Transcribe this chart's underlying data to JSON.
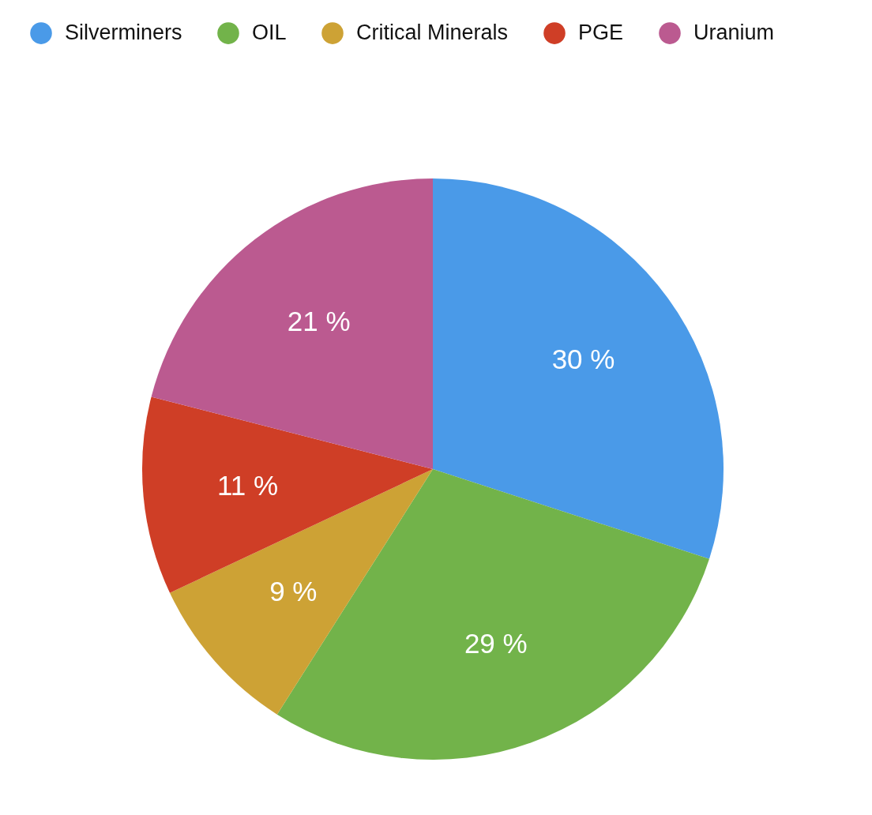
{
  "chart_data": {
    "type": "pie",
    "categories": [
      "Silverminers",
      "OIL",
      "Critical Minerals",
      "PGE",
      "Uranium"
    ],
    "values": [
      30,
      29,
      9,
      11,
      21
    ],
    "colors": [
      "#4a9ae8",
      "#72b34a",
      "#cda235",
      "#cf3e26",
      "#bb5a90"
    ],
    "value_labels": [
      "30 %",
      "29 %",
      "9 %",
      "11 %",
      "21 %"
    ],
    "legend": "top"
  }
}
